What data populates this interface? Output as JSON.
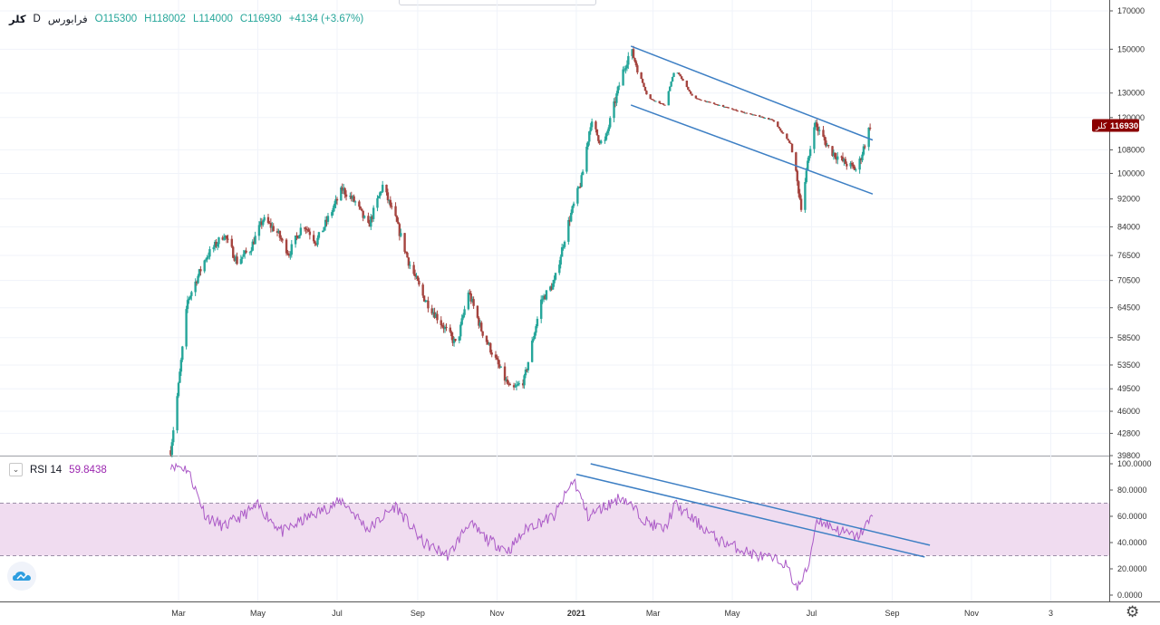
{
  "legend": {
    "symbol": "کلر",
    "interval": "D",
    "exchange": "فرابورس",
    "open": "O115300",
    "high": "H118002",
    "low": "L114000",
    "close": "C116930",
    "change": "+4134 (+3.67%)"
  },
  "price_badge": {
    "label": "کلر",
    "value": "116930",
    "color": "#8b0000"
  },
  "rsi_legend": {
    "name": "RSI 14",
    "value": "59.8438"
  },
  "icons": {
    "logo": "tradingview-cloud-icon",
    "settings": "gear-icon",
    "indicator": "collapse-icon"
  },
  "colors": {
    "up": "#26a69a",
    "down": "#a5443f",
    "trendline": "#3d7fc4",
    "rsi": "#ab5ac7",
    "rsi_band": "#f0dcf0"
  },
  "chart_data": [
    {
      "type": "candlestick",
      "title": "",
      "scale": "log",
      "y_tick_labels": [
        "170000",
        "150000",
        "130000",
        "120000",
        "108000",
        "100000",
        "92000",
        "84000",
        "76500",
        "70500",
        "64500",
        "58500",
        "53500",
        "49500",
        "46000",
        "42800",
        "39800"
      ],
      "y_ticks": [
        170000,
        150000,
        130000,
        120000,
        108000,
        100000,
        92000,
        84000,
        76500,
        70500,
        64500,
        58500,
        53500,
        49500,
        46000,
        42800,
        39800
      ],
      "x_tick_labels": [
        "Mar",
        "May",
        "Jul",
        "Sep",
        "Nov",
        "2021",
        "Mar",
        "May",
        "Jul",
        "Sep",
        "Nov",
        "3"
      ],
      "x_tick_dates": [
        "2020-03-01",
        "2020-05-01",
        "2020-07-01",
        "2020-09-01",
        "2020-11-01",
        "2021-01-01",
        "2021-03-01",
        "2021-05-01",
        "2021-07-01",
        "2021-09-01",
        "2021-11-01",
        "2022-01-01"
      ],
      "ohlc_anchor_series": [
        [
          "2020-02-24",
          40500
        ],
        [
          "2020-03-01",
          50000
        ],
        [
          "2020-03-08",
          66000
        ],
        [
          "2020-03-22",
          76000
        ],
        [
          "2020-04-05",
          82000
        ],
        [
          "2020-04-15",
          75000
        ],
        [
          "2020-04-25",
          78000
        ],
        [
          "2020-05-05",
          86000
        ],
        [
          "2020-05-15",
          83000
        ],
        [
          "2020-05-25",
          77000
        ],
        [
          "2020-06-05",
          85000
        ],
        [
          "2020-06-15",
          80000
        ],
        [
          "2020-06-25",
          87000
        ],
        [
          "2020-07-05",
          95000
        ],
        [
          "2020-07-15",
          91000
        ],
        [
          "2020-07-25",
          84000
        ],
        [
          "2020-08-05",
          96000
        ],
        [
          "2020-08-15",
          86000
        ],
        [
          "2020-08-25",
          75000
        ],
        [
          "2020-09-05",
          67000
        ],
        [
          "2020-09-20",
          61000
        ],
        [
          "2020-10-01",
          57000
        ],
        [
          "2020-10-10",
          68000
        ],
        [
          "2020-10-20",
          60000
        ],
        [
          "2020-11-05",
          52000
        ],
        [
          "2020-11-12",
          49000
        ],
        [
          "2020-11-22",
          51000
        ],
        [
          "2020-12-05",
          66000
        ],
        [
          "2020-12-15",
          70000
        ],
        [
          "2020-12-25",
          84000
        ],
        [
          "2021-01-05",
          98000
        ],
        [
          "2021-01-12",
          118000
        ],
        [
          "2021-01-22",
          109000
        ],
        [
          "2021-02-05",
          138000
        ],
        [
          "2021-02-12",
          150000
        ],
        [
          "2021-02-25",
          128000
        ],
        [
          "2021-03-10",
          125000
        ],
        [
          "2021-03-18",
          141000
        ],
        [
          "2021-04-01",
          128000
        ],
        [
          "2021-04-20",
          125000
        ],
        [
          "2021-05-10",
          122000
        ],
        [
          "2021-06-01",
          119000
        ],
        [
          "2021-06-15",
          110000
        ],
        [
          "2021-06-23",
          90000
        ],
        [
          "2021-06-28",
          103000
        ],
        [
          "2021-07-03",
          118000
        ],
        [
          "2021-07-15",
          108000
        ],
        [
          "2021-07-25",
          104000
        ],
        [
          "2021-08-05",
          101000
        ],
        [
          "2021-08-15",
          116930
        ]
      ],
      "trendlines": [
        {
          "from": [
            "2021-02-12",
            151500
          ],
          "to": [
            "2021-08-17",
            111500
          ]
        },
        {
          "from": [
            "2021-02-12",
            125000
          ],
          "to": [
            "2021-08-17",
            93500
          ]
        }
      ],
      "last_price": 116930
    },
    {
      "type": "line",
      "title": "RSI 14",
      "y_tick_labels": [
        "100.0000",
        "80.0000",
        "60.0000",
        "40.0000",
        "20.0000",
        "0.0000"
      ],
      "ylim": [
        0,
        100
      ],
      "band": [
        30,
        70
      ],
      "anchors": [
        [
          "2020-02-24",
          100
        ],
        [
          "2020-03-08",
          96
        ],
        [
          "2020-03-22",
          60
        ],
        [
          "2020-04-05",
          52
        ],
        [
          "2020-05-01",
          68
        ],
        [
          "2020-05-20",
          48
        ],
        [
          "2020-06-10",
          60
        ],
        [
          "2020-07-05",
          72
        ],
        [
          "2020-07-25",
          50
        ],
        [
          "2020-08-15",
          68
        ],
        [
          "2020-09-05",
          40
        ],
        [
          "2020-09-25",
          30
        ],
        [
          "2020-10-10",
          55
        ],
        [
          "2020-10-25",
          42
        ],
        [
          "2020-11-10",
          34
        ],
        [
          "2020-11-25",
          52
        ],
        [
          "2020-12-15",
          60
        ],
        [
          "2020-12-30",
          88
        ],
        [
          "2021-01-10",
          60
        ],
        [
          "2021-02-05",
          75
        ],
        [
          "2021-02-25",
          55
        ],
        [
          "2021-03-10",
          50
        ],
        [
          "2021-03-18",
          69
        ],
        [
          "2021-04-20",
          42
        ],
        [
          "2021-05-20",
          30
        ],
        [
          "2021-06-10",
          25
        ],
        [
          "2021-06-20",
          5
        ],
        [
          "2021-06-28",
          20
        ],
        [
          "2021-07-05",
          58
        ],
        [
          "2021-07-20",
          50
        ],
        [
          "2021-08-05",
          44
        ],
        [
          "2021-08-17",
          59.84
        ]
      ],
      "trendlines": [
        {
          "from": [
            "2021-01-01",
            92
          ],
          "to": [
            "2021-09-26",
            29
          ]
        },
        {
          "from": [
            "2021-01-12",
            100
          ],
          "to": [
            "2021-09-30",
            38
          ]
        }
      ]
    }
  ]
}
